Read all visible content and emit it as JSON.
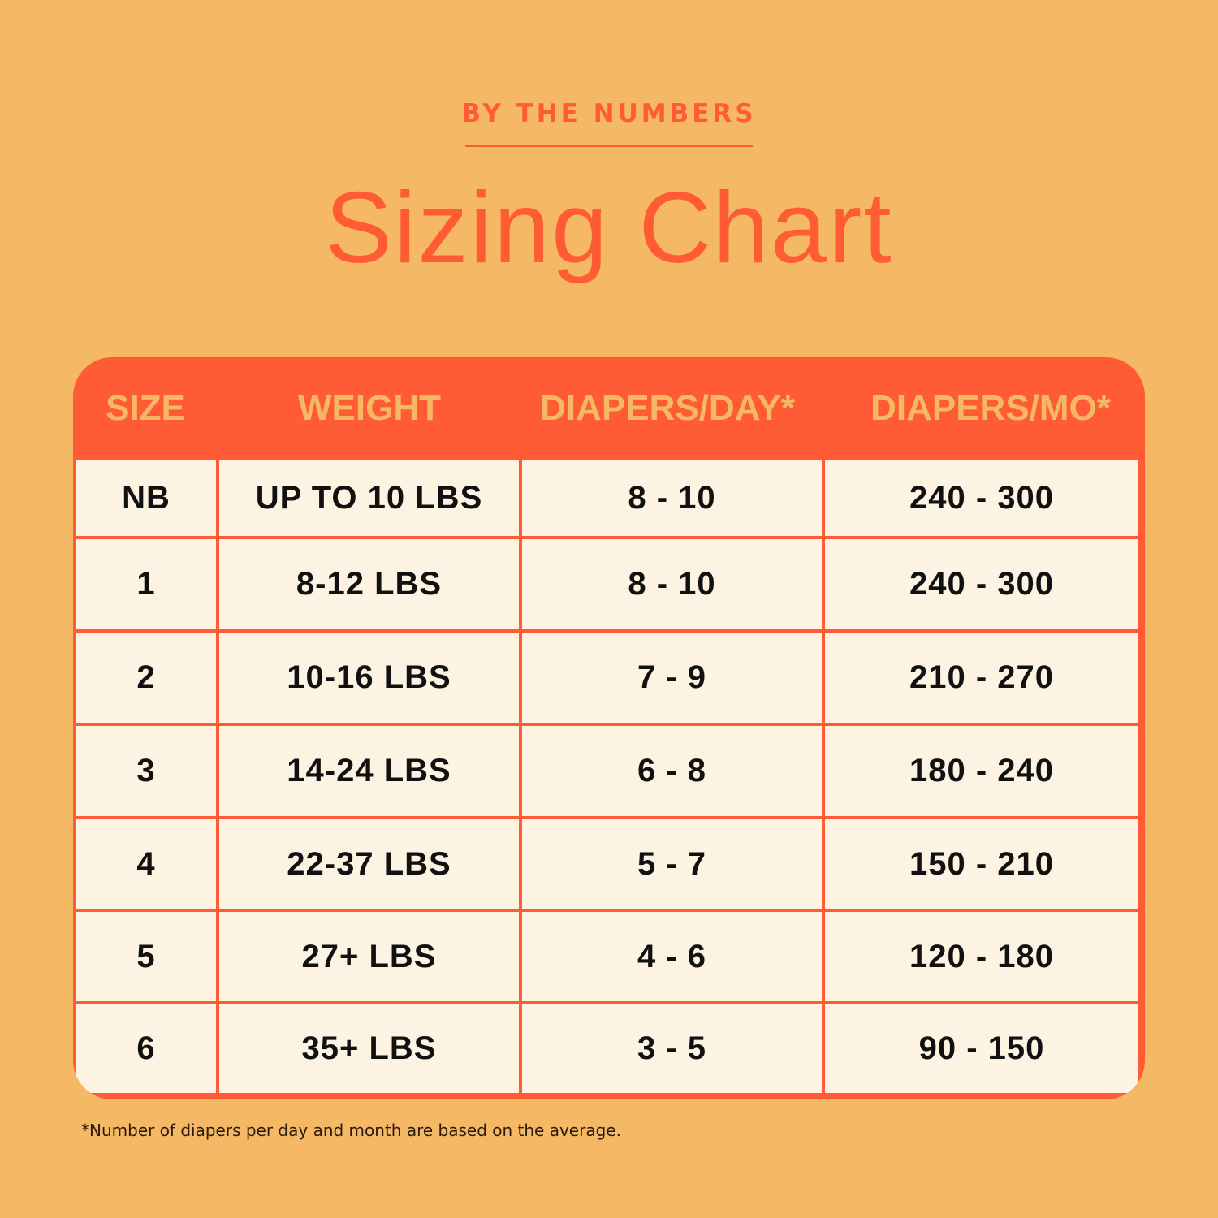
{
  "kicker": "BY THE NUMBERS",
  "title": "Sizing Chart",
  "colors": {
    "background": "#F5B865",
    "accent": "#FF5C35",
    "cell": "#FDF3E3"
  },
  "table": {
    "headers": [
      "SIZE",
      "WEIGHT",
      "DIAPERS/DAY*",
      "DIAPERS/MO*"
    ],
    "rows": [
      [
        "NB",
        "UP TO 10 LBS",
        "8 - 10",
        "240 - 300"
      ],
      [
        "1",
        "8-12 LBS",
        "8 - 10",
        "240 - 300"
      ],
      [
        "2",
        "10-16 LBS",
        "7 - 9",
        "210 - 270"
      ],
      [
        "3",
        "14-24 LBS",
        "6 - 8",
        "180 - 240"
      ],
      [
        "4",
        "22-37 LBS",
        "5 - 7",
        "150 - 210"
      ],
      [
        "5",
        "27+ LBS",
        "4 - 6",
        "120 - 180"
      ],
      [
        "6",
        "35+ LBS",
        "3 - 5",
        "90 - 150"
      ]
    ]
  },
  "footnote": "*Number of diapers per day and month are based on the average."
}
